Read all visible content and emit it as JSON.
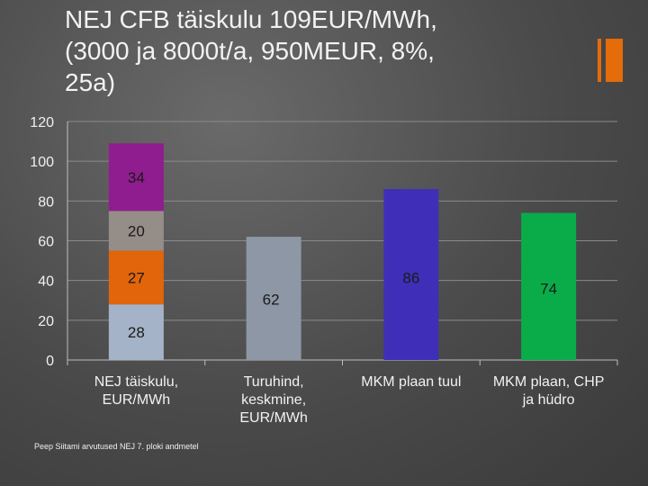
{
  "slide": {
    "title_lines": [
      "NEJ CFB täiskulu 109EUR/MWh,",
      "(3000 ja 8000t/a, 950MEUR, 8%,",
      "25a)"
    ],
    "footnote": "Peep Siitami arvutused NEJ 7. ploki andmetel",
    "accent_color": "#e46c0a"
  },
  "chart_data": {
    "type": "bar",
    "stacked": true,
    "title": "",
    "xlabel": "",
    "ylabel": "",
    "ylim": [
      0,
      120
    ],
    "yticks": [
      0,
      20,
      40,
      60,
      80,
      100,
      120
    ],
    "grid": true,
    "legend": "none",
    "categories": [
      [
        "NEJ täiskulu,",
        "EUR/MWh"
      ],
      [
        "Turuhind,",
        "keskmine,",
        "EUR/MWh"
      ],
      [
        "MKM plaan tuul"
      ],
      [
        "MKM plaan, CHP",
        "ja hüdro"
      ]
    ],
    "bars": [
      {
        "segments": [
          {
            "value": 28,
            "label": "28",
            "color": "#a5b3c8"
          },
          {
            "value": 27,
            "label": "27",
            "color": "#e2650b"
          },
          {
            "value": 20,
            "label": "20",
            "color": "#958d88"
          },
          {
            "value": 34,
            "label": "34",
            "color": "#8f1d8f"
          }
        ]
      },
      {
        "segments": [
          {
            "value": 62,
            "label": "62",
            "color": "#8e97a6"
          }
        ]
      },
      {
        "segments": [
          {
            "value": 86,
            "label": "86",
            "color": "#3f2fb8"
          }
        ]
      },
      {
        "segments": [
          {
            "value": 74,
            "label": "74",
            "color": "#0aac4a"
          }
        ]
      }
    ]
  }
}
